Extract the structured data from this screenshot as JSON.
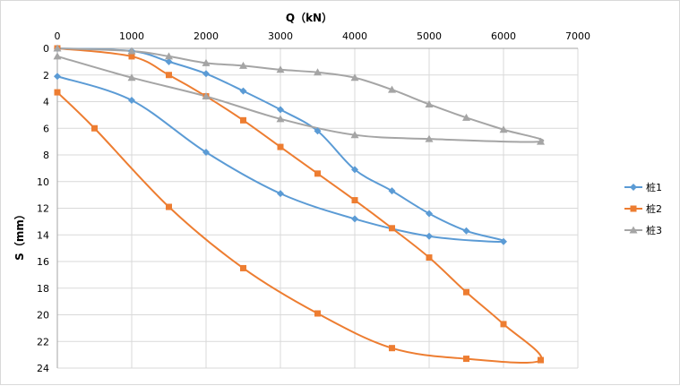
{
  "chart_data": {
    "type": "scatter",
    "xlabel": "Q（kN）",
    "ylabel": "S（mm）",
    "xlim": [
      0,
      7000
    ],
    "ylim": [
      0,
      24
    ],
    "x_ticks": [
      0,
      1000,
      2000,
      3000,
      4000,
      5000,
      6000,
      7000
    ],
    "y_ticks": [
      0,
      2,
      4,
      6,
      8,
      10,
      12,
      14,
      16,
      18,
      20,
      22,
      24
    ],
    "y_reversed": true,
    "x_axis_position": "top",
    "grid": true,
    "legend_position": "right",
    "smooth_lines": true,
    "series": [
      {
        "name": "桩1",
        "color": "#5b9bd5",
        "marker": "diamond",
        "x": [
          0,
          1000,
          1500,
          2000,
          2500,
          3000,
          3500,
          4000,
          4500,
          5000,
          5500,
          6000,
          5000,
          4000,
          3000,
          2000,
          1000,
          0
        ],
        "y": [
          0,
          0.2,
          1.0,
          1.9,
          3.2,
          4.6,
          6.2,
          9.1,
          10.7,
          12.4,
          13.7,
          14.5,
          14.1,
          12.8,
          10.9,
          7.8,
          3.9,
          2.1
        ]
      },
      {
        "name": "桩2",
        "color": "#ed7d31",
        "marker": "square",
        "x": [
          0,
          1000,
          1500,
          2000,
          2500,
          3000,
          3500,
          4000,
          4500,
          5000,
          5500,
          6000,
          6500,
          5500,
          4500,
          3500,
          2500,
          1500,
          500,
          0
        ],
        "y": [
          0,
          0.6,
          2.0,
          3.6,
          5.4,
          7.4,
          9.4,
          11.4,
          13.5,
          15.7,
          18.3,
          20.7,
          23.4,
          23.3,
          22.5,
          19.9,
          16.5,
          11.9,
          6.0,
          3.3
        ]
      },
      {
        "name": "桩3",
        "color": "#a5a5a5",
        "marker": "triangle",
        "x": [
          0,
          1000,
          1500,
          2000,
          2500,
          3000,
          3500,
          4000,
          4500,
          5000,
          5500,
          6000,
          6500,
          5000,
          4000,
          3000,
          2000,
          1000,
          0
        ],
        "y": [
          0,
          0.2,
          0.6,
          1.1,
          1.3,
          1.6,
          1.8,
          2.2,
          3.1,
          4.2,
          5.2,
          6.1,
          7.0,
          6.8,
          6.5,
          5.3,
          3.6,
          2.2,
          0.6
        ]
      }
    ]
  }
}
